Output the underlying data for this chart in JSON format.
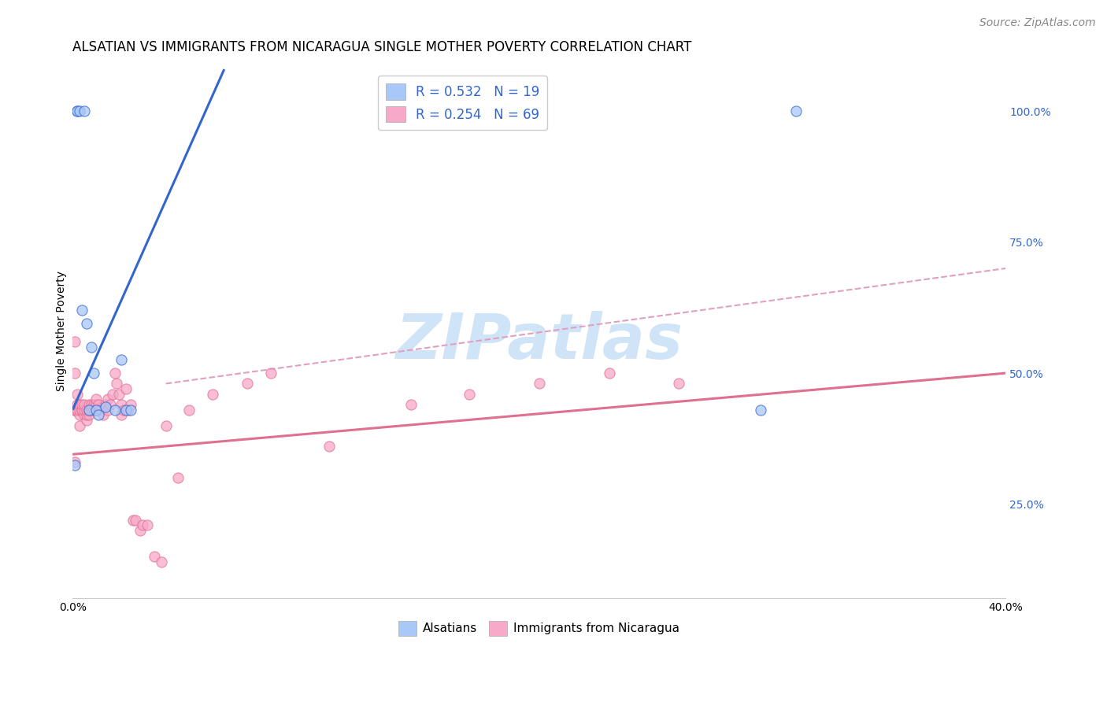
{
  "title": "ALSATIAN VS IMMIGRANTS FROM NICARAGUA SINGLE MOTHER POVERTY CORRELATION CHART",
  "source": "Source: ZipAtlas.com",
  "ylabel": "Single Mother Poverty",
  "right_yticks": [
    "100.0%",
    "75.0%",
    "50.0%",
    "25.0%"
  ],
  "right_ytick_vals": [
    1.0,
    0.75,
    0.5,
    0.25
  ],
  "legend_blue_label": "R = 0.532   N = 19",
  "legend_pink_label": "R = 0.254   N = 69",
  "alsatian_color": "#a8c8f8",
  "nicaragua_color": "#f8a8c8",
  "blue_line_color": "#3366cc",
  "pink_line_color": "#e07090",
  "dashed_line_color": "#e0a0c0",
  "watermark_color": "#d0e4f8",
  "background_color": "#ffffff",
  "grid_color": "#e0e0e8",
  "alsatians_x": [
    0.001,
    0.002,
    0.002,
    0.003,
    0.004,
    0.005,
    0.006,
    0.007,
    0.008,
    0.009,
    0.01,
    0.011,
    0.014,
    0.018,
    0.021,
    0.023,
    0.025,
    0.295,
    0.31
  ],
  "alsatians_y": [
    0.325,
    1.0,
    1.0,
    1.0,
    0.62,
    1.0,
    0.595,
    0.43,
    0.55,
    0.5,
    0.43,
    0.42,
    0.435,
    0.43,
    0.525,
    0.43,
    0.43,
    0.43,
    1.0
  ],
  "nicaragua_x": [
    0.001,
    0.001,
    0.001,
    0.001,
    0.001,
    0.001,
    0.002,
    0.002,
    0.002,
    0.002,
    0.003,
    0.003,
    0.003,
    0.003,
    0.004,
    0.004,
    0.004,
    0.005,
    0.005,
    0.005,
    0.006,
    0.006,
    0.006,
    0.007,
    0.007,
    0.007,
    0.008,
    0.008,
    0.009,
    0.009,
    0.01,
    0.01,
    0.01,
    0.011,
    0.012,
    0.013,
    0.014,
    0.015,
    0.015,
    0.016,
    0.017,
    0.018,
    0.019,
    0.02,
    0.021,
    0.021,
    0.022,
    0.023,
    0.024,
    0.025,
    0.026,
    0.027,
    0.029,
    0.03,
    0.032,
    0.035,
    0.038,
    0.04,
    0.045,
    0.05,
    0.06,
    0.075,
    0.085,
    0.11,
    0.145,
    0.17,
    0.2,
    0.23,
    0.26
  ],
  "nicaragua_y": [
    0.33,
    0.43,
    0.43,
    0.43,
    0.5,
    0.56,
    0.43,
    0.43,
    0.44,
    0.46,
    0.4,
    0.42,
    0.43,
    0.44,
    0.43,
    0.43,
    0.44,
    0.42,
    0.43,
    0.44,
    0.41,
    0.42,
    0.43,
    0.42,
    0.43,
    0.44,
    0.43,
    0.44,
    0.43,
    0.44,
    0.43,
    0.44,
    0.45,
    0.44,
    0.43,
    0.42,
    0.44,
    0.43,
    0.45,
    0.44,
    0.46,
    0.5,
    0.48,
    0.46,
    0.44,
    0.42,
    0.43,
    0.47,
    0.43,
    0.44,
    0.22,
    0.22,
    0.2,
    0.21,
    0.21,
    0.15,
    0.14,
    0.4,
    0.3,
    0.43,
    0.46,
    0.48,
    0.5,
    0.36,
    0.44,
    0.46,
    0.48,
    0.5,
    0.48
  ],
  "blue_line_x": [
    0.0,
    0.065
  ],
  "blue_line_y": [
    0.43,
    1.08
  ],
  "pink_line_x": [
    0.0,
    0.4
  ],
  "pink_line_y": [
    0.345,
    0.5
  ],
  "dashed_line_x": [
    0.04,
    0.4
  ],
  "dashed_line_y": [
    0.48,
    0.7
  ],
  "xlim": [
    0.0,
    0.4
  ],
  "ylim": [
    0.07,
    1.09
  ],
  "marker_size": 90,
  "marker_alpha": 0.75,
  "title_fontsize": 12,
  "axis_label_fontsize": 10,
  "tick_fontsize": 10,
  "legend_fontsize": 12,
  "source_fontsize": 10,
  "watermark_text": "ZIPatlas"
}
